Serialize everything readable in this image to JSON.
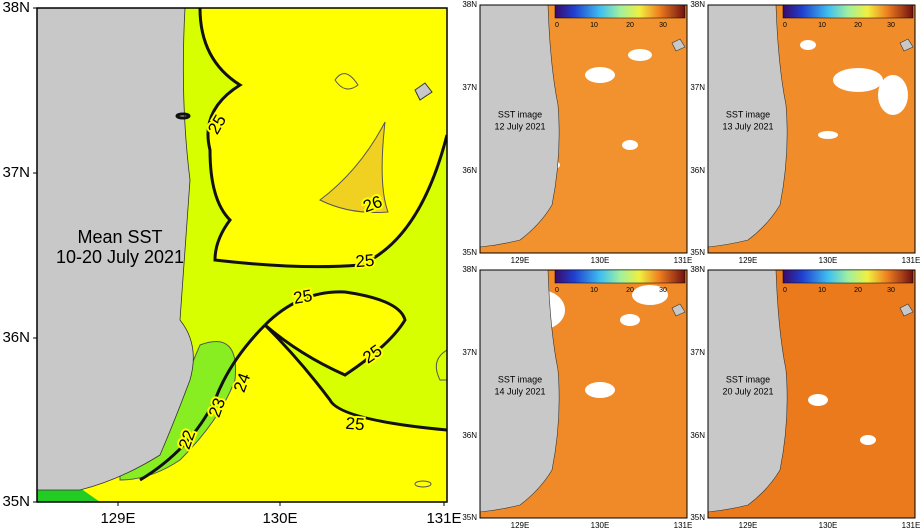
{
  "main_map": {
    "title": [
      "Mean SST",
      "10-20 July 2021"
    ],
    "lat_labels": [
      "38N",
      "37N",
      "36N",
      "35N"
    ],
    "lon_labels": [
      "129E",
      "130E",
      "131E"
    ],
    "contour_labels": [
      "25",
      "26",
      "25",
      "25",
      "25",
      "25",
      "24",
      "23",
      "22"
    ]
  },
  "panels": [
    {
      "caption": [
        "SST image",
        "12 July 2021"
      ]
    },
    {
      "caption": [
        "SST image",
        "13 July 2021"
      ]
    },
    {
      "caption": [
        "SST image",
        "14 July 2021"
      ]
    },
    {
      "caption": [
        "SST image",
        "20 July 2021"
      ]
    }
  ],
  "panel_lat_labels": [
    "38N",
    "37N",
    "36N",
    "35N"
  ],
  "panel_lon_labels": [
    "129E",
    "130E",
    "131E"
  ],
  "colorbar_ticks": [
    "0",
    "10",
    "20",
    "30"
  ]
}
